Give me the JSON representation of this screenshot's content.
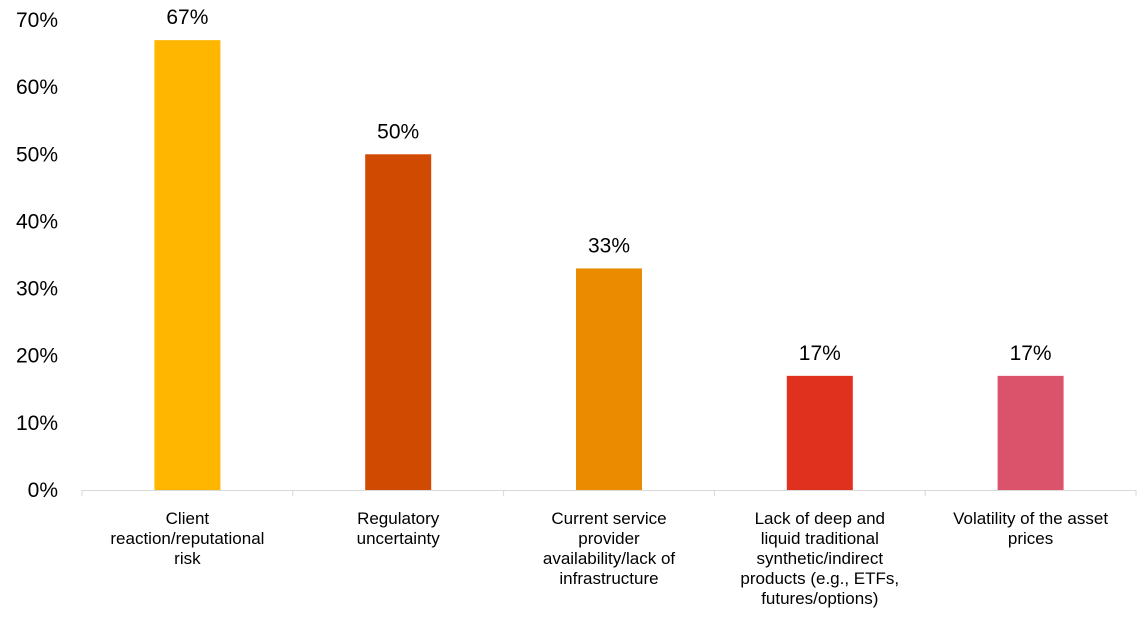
{
  "chart_data": {
    "type": "bar",
    "categories": [
      [
        "Client",
        "reaction/reputational",
        "risk"
      ],
      [
        "Regulatory",
        "uncertainty"
      ],
      [
        "Current service",
        "provider",
        "availability/lack of",
        "infrastructure"
      ],
      [
        "Lack of deep and",
        "liquid traditional",
        "synthetic/indirect",
        "products (e.g., ETFs,",
        "futures/options)"
      ],
      [
        "Volatility of the asset",
        "prices"
      ]
    ],
    "values": [
      67,
      50,
      33,
      17,
      17
    ],
    "data_labels": [
      "67%",
      "50%",
      "33%",
      "17%",
      "17%"
    ],
    "colors": [
      "#FFB600",
      "#D04A02",
      "#EB8C00",
      "#E0301E",
      "#DB536A"
    ],
    "ylim": [
      0,
      70
    ],
    "yticks": [
      "0%",
      "10%",
      "20%",
      "30%",
      "40%",
      "50%",
      "60%",
      "70%"
    ],
    "grid": false,
    "legend": false
  }
}
